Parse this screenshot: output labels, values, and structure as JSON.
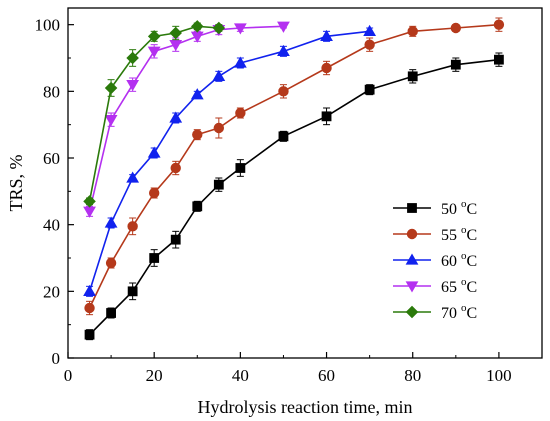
{
  "chart_data": {
    "type": "line",
    "title": "",
    "xlabel": "Hydrolysis reaction time, min",
    "ylabel": "TRS, %",
    "xlim": [
      0,
      110
    ],
    "ylim": [
      0,
      105
    ],
    "x_ticks": [
      0,
      20,
      40,
      60,
      80,
      100
    ],
    "y_ticks": [
      0,
      20,
      40,
      60,
      80,
      100
    ],
    "x_tick_labels": [
      "0",
      "20",
      "40",
      "60",
      "80",
      "100"
    ],
    "y_tick_labels": [
      "0",
      "20",
      "40",
      "60",
      "80",
      "100"
    ],
    "grid": false,
    "legend_position": "lower-right",
    "series": [
      {
        "name": "50 °C",
        "name_base": "50 ",
        "name_sup": "o",
        "name_unit": "C",
        "color": "#000000",
        "marker": "square",
        "x": [
          5,
          10,
          15,
          20,
          25,
          30,
          35,
          40,
          50,
          60,
          70,
          80,
          90,
          100
        ],
        "y": [
          7,
          13.5,
          20,
          30,
          35.5,
          45.5,
          52,
          57,
          66.5,
          72.5,
          80.5,
          84.5,
          88,
          89.5
        ],
        "err": [
          1.5,
          1.5,
          2.5,
          2.5,
          2.5,
          1.5,
          2.0,
          2.5,
          1.5,
          2.5,
          1.5,
          2.0,
          2.0,
          2.0
        ]
      },
      {
        "name": "55 °C",
        "name_base": "55 ",
        "name_sup": "o",
        "name_unit": "C",
        "color": "#b5391b",
        "marker": "circle",
        "x": [
          5,
          10,
          15,
          20,
          25,
          30,
          35,
          40,
          50,
          60,
          70,
          80,
          90,
          100
        ],
        "y": [
          15,
          28.5,
          39.5,
          49.5,
          57,
          67,
          69,
          73.5,
          80,
          87,
          94,
          98,
          99,
          100
        ],
        "err": [
          2.0,
          1.5,
          2.5,
          1.5,
          2.0,
          1.5,
          3.0,
          1.5,
          2.0,
          2.0,
          2.0,
          1.5,
          1.0,
          2.0
        ]
      },
      {
        "name": "60 °C",
        "name_base": "60 ",
        "name_sup": "o",
        "name_unit": "C",
        "color": "#1122ee",
        "marker": "triangle-up",
        "x": [
          5,
          10,
          15,
          20,
          25,
          30,
          35,
          40,
          50,
          60,
          70
        ],
        "y": [
          20,
          40.5,
          54,
          61.5,
          72,
          79,
          84.5,
          88.5,
          92,
          96.5,
          98
        ],
        "err": [
          1.5,
          1.5,
          1.0,
          1.5,
          1.5,
          1.0,
          1.5,
          1.5,
          1.5,
          1.5,
          1.0
        ]
      },
      {
        "name": "65 °C",
        "name_base": "65 ",
        "name_sup": "o",
        "name_unit": "C",
        "color": "#b430f0",
        "marker": "triangle-down",
        "x": [
          5,
          10,
          15,
          20,
          25,
          30,
          35,
          40,
          50
        ],
        "y": [
          44,
          71.5,
          82,
          92,
          94,
          96.5,
          98.5,
          99,
          99.5
        ],
        "err": [
          1.5,
          2.0,
          2.0,
          2.0,
          2.0,
          1.5,
          1.5,
          1.0,
          0.5
        ]
      },
      {
        "name": "70 °C",
        "name_base": "70 ",
        "name_sup": "o",
        "name_unit": "C",
        "color": "#2b7a0b",
        "marker": "diamond",
        "x": [
          5,
          10,
          15,
          20,
          25,
          30,
          35
        ],
        "y": [
          47,
          81,
          90,
          96.5,
          97.5,
          99.5,
          99
        ],
        "err": [
          1.0,
          2.5,
          2.5,
          1.5,
          2.0,
          1.0,
          1.0
        ]
      }
    ]
  }
}
